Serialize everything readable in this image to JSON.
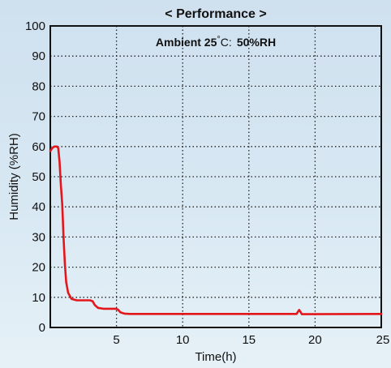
{
  "chart_data": {
    "type": "line",
    "title": "< Performance >",
    "annotation": {
      "prefix": "Ambient 25",
      "degree": "°",
      "unit": "C",
      "separator": ":",
      "suffix": "50%RH"
    },
    "xlabel": "Time(h)",
    "ylabel": "Humidity (%RH)",
    "xlim": [
      0,
      25
    ],
    "ylim": [
      0,
      100
    ],
    "xticks": [
      5,
      10,
      15,
      20,
      25
    ],
    "yticks": [
      0,
      10,
      20,
      30,
      40,
      50,
      60,
      70,
      80,
      90,
      100
    ],
    "grid": true,
    "series": [
      {
        "color": "#e3161c",
        "points": [
          [
            0,
            58.5
          ],
          [
            0.15,
            59.5
          ],
          [
            0.3,
            60
          ],
          [
            0.5,
            60
          ],
          [
            0.6,
            59.5
          ],
          [
            0.7,
            55
          ],
          [
            0.8,
            47
          ],
          [
            0.9,
            41
          ],
          [
            1.0,
            30
          ],
          [
            1.1,
            21
          ],
          [
            1.2,
            15
          ],
          [
            1.35,
            11.5
          ],
          [
            1.6,
            9.5
          ],
          [
            2.0,
            9
          ],
          [
            3.0,
            9
          ],
          [
            3.2,
            8.7
          ],
          [
            3.35,
            7.5
          ],
          [
            3.6,
            6.5
          ],
          [
            4.0,
            6.2
          ],
          [
            4.9,
            6.2
          ],
          [
            5.1,
            6
          ],
          [
            5.3,
            5
          ],
          [
            5.6,
            4.6
          ],
          [
            6.0,
            4.5
          ],
          [
            18.6,
            4.5
          ],
          [
            18.7,
            5.2
          ],
          [
            18.8,
            5.8
          ],
          [
            18.9,
            5.2
          ],
          [
            19.0,
            4.4
          ],
          [
            25,
            4.5
          ]
        ]
      }
    ]
  }
}
